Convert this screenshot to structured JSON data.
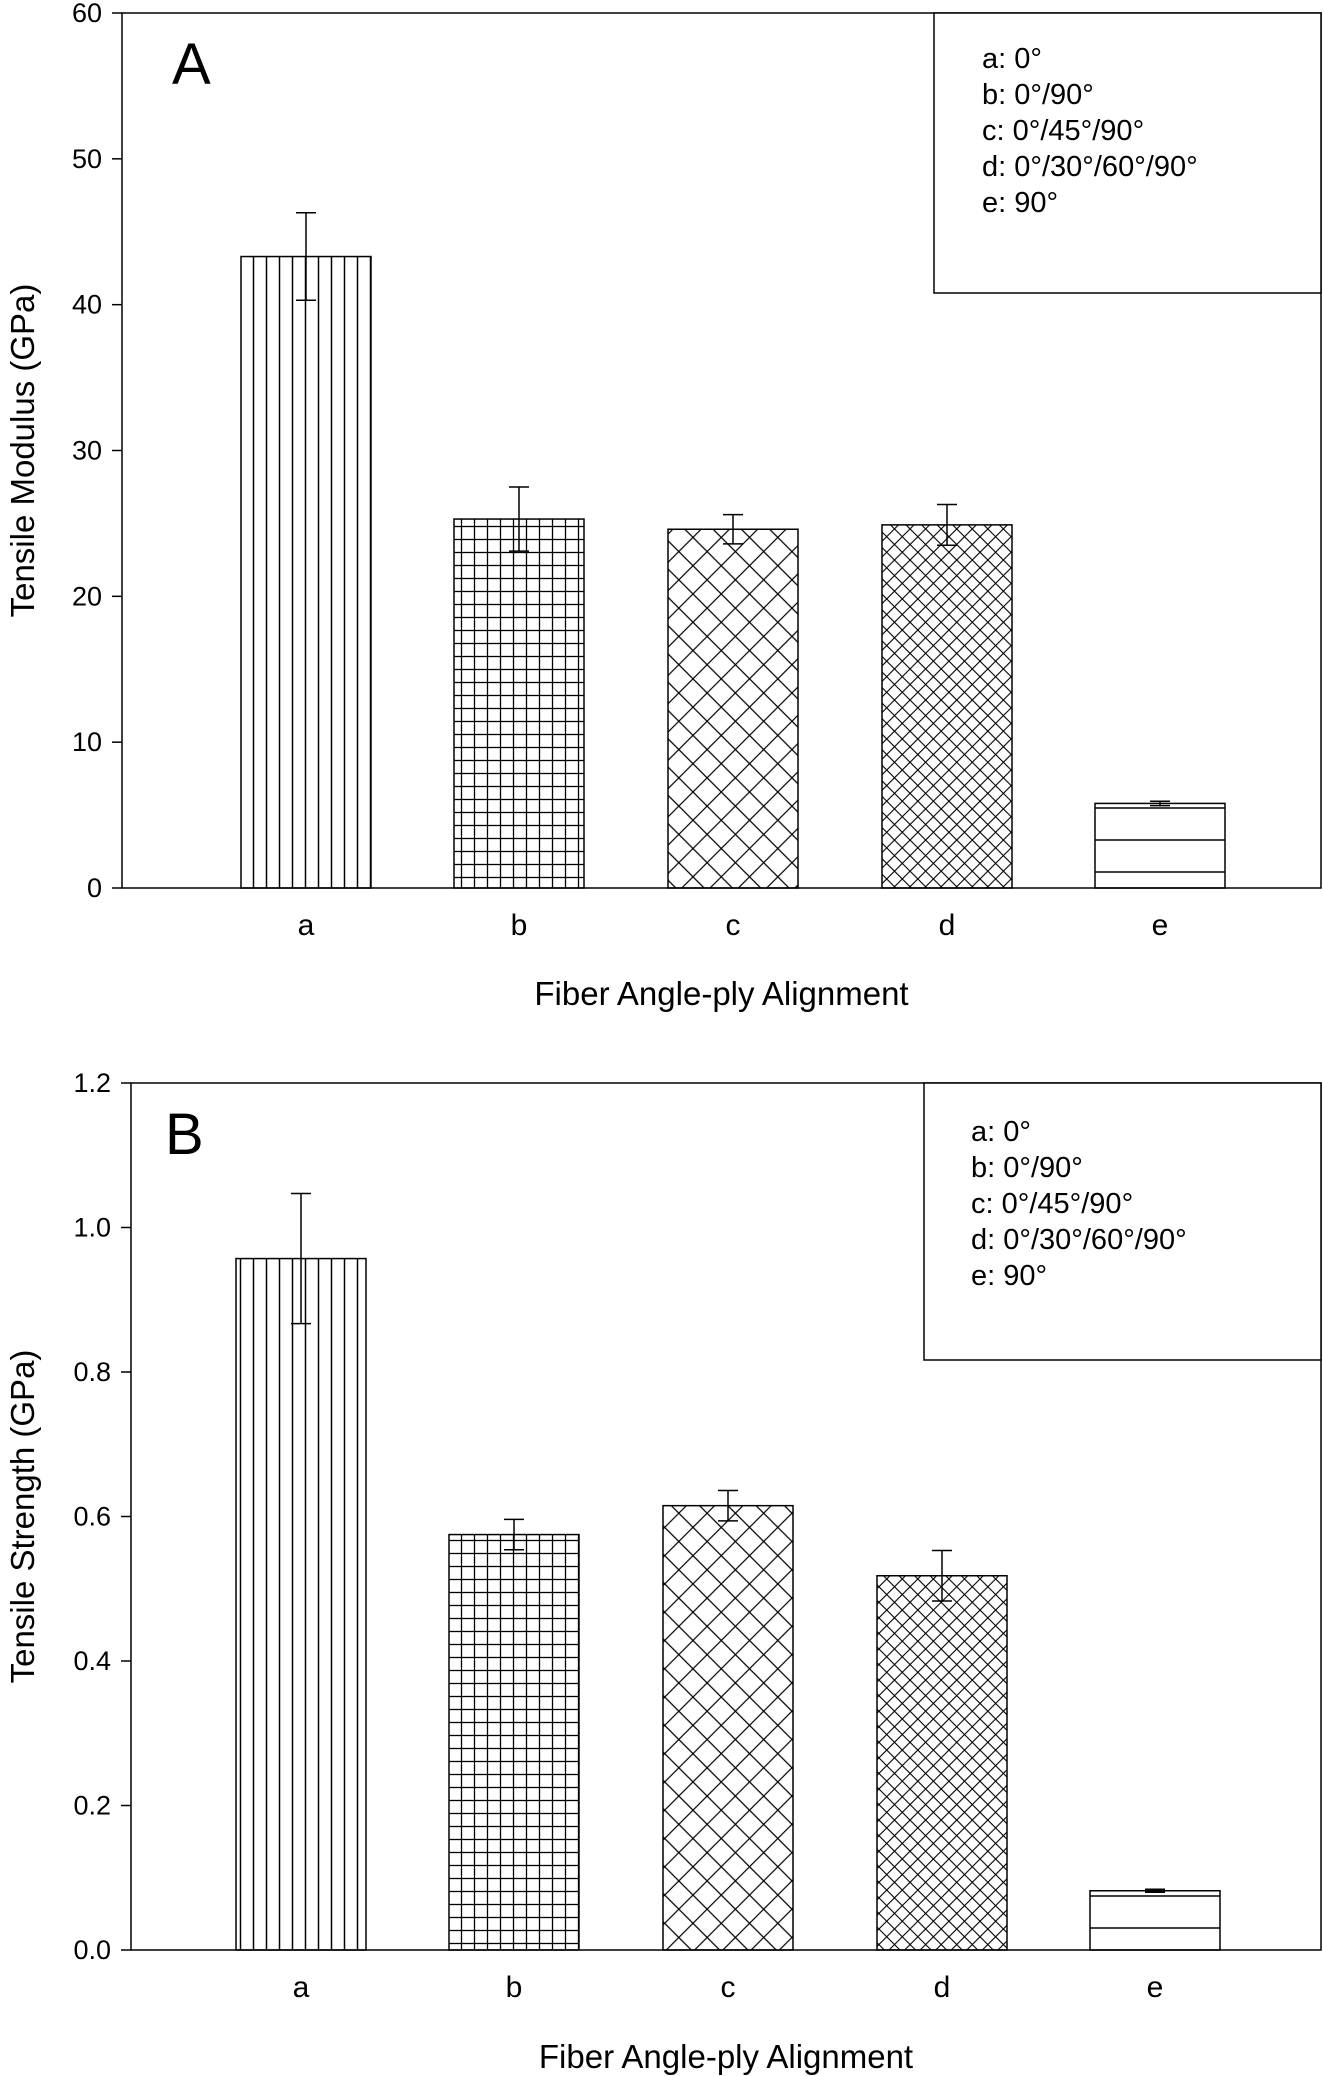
{
  "chart_data": [
    {
      "type": "bar",
      "panel_label": "A",
      "categories": [
        "a",
        "b",
        "c",
        "d",
        "e"
      ],
      "values": [
        43.3,
        25.3,
        24.6,
        24.9,
        5.8
      ],
      "errors": [
        3.0,
        2.2,
        1.0,
        1.4,
        0.15
      ],
      "patterns": [
        "vertical",
        "grid",
        "cross-wide",
        "cross-dense",
        "horizontal"
      ],
      "xlabel": "Fiber Angle-ply Alignment",
      "ylabel": "Tensile Modulus (GPa)",
      "ylim": [
        0,
        60
      ],
      "yticks": [
        "0",
        "10",
        "20",
        "30",
        "40",
        "50",
        "60"
      ],
      "legend": [
        "a: 0°",
        "b: 0°/90°",
        "c: 0°/45°/90°",
        "d: 0°/30°/60°/90°",
        "e: 90°"
      ],
      "legend_position": "top-right",
      "grid": false
    },
    {
      "type": "bar",
      "panel_label": "B",
      "categories": [
        "a",
        "b",
        "c",
        "d",
        "e"
      ],
      "values": [
        0.957,
        0.575,
        0.615,
        0.518,
        0.082
      ],
      "errors": [
        0.09,
        0.021,
        0.021,
        0.035,
        0.002
      ],
      "patterns": [
        "vertical",
        "grid",
        "cross-wide",
        "cross-dense",
        "horizontal"
      ],
      "xlabel": "Fiber Angle-ply Alignment",
      "ylabel": "Tensile Strength (GPa)",
      "ylim": [
        0,
        1.2
      ],
      "yticks": [
        "0.0",
        "0.2",
        "0.4",
        "0.6",
        "0.8",
        "1.0",
        "1.2"
      ],
      "legend": [
        "a: 0°",
        "b: 0°/90°",
        "c: 0°/45°/90°",
        "d: 0°/30°/60°/90°",
        "e: 90°"
      ],
      "legend_position": "top-right",
      "grid": false
    }
  ]
}
